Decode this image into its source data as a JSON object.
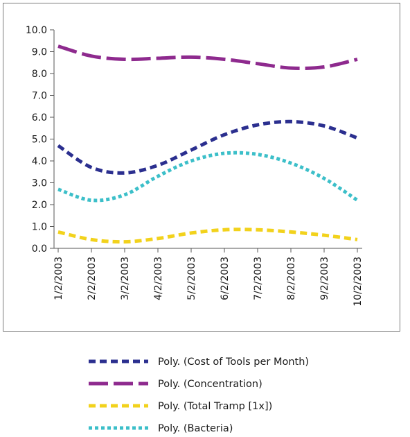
{
  "chart_data": {
    "type": "line",
    "title": "",
    "xlabel": "",
    "ylabel": "",
    "ylim": [
      0,
      10
    ],
    "y_ticks": [
      "0.0",
      "1.0",
      "2.0",
      "3.0",
      "4.0",
      "5.0",
      "6.0",
      "7.0",
      "8.0",
      "9.0",
      "10.0"
    ],
    "categories": [
      "1/2/2003",
      "2/2/2003",
      "3/2/2003",
      "4/2/2003",
      "5/2/2003",
      "6/2/2003",
      "7/2/2003",
      "8/2/2003",
      "9/2/2003",
      "10/2/2003"
    ],
    "grid": false,
    "legend_position": "bottom",
    "series": [
      {
        "name": "Poly. (Cost of Tools per Month)",
        "color": "#2b2f8f",
        "dash": "dash",
        "values": [
          4.7,
          3.7,
          3.45,
          3.8,
          4.5,
          5.2,
          5.65,
          5.8,
          5.6,
          5.05
        ]
      },
      {
        "name": "Poly. (Concentration)",
        "color": "#8e2a8e",
        "dash": "long-dash",
        "values": [
          9.25,
          8.8,
          8.65,
          8.7,
          8.75,
          8.65,
          8.45,
          8.25,
          8.3,
          8.65
        ]
      },
      {
        "name": "Poly. (Total Tramp [1x])",
        "color": "#f2d21c",
        "dash": "dash",
        "values": [
          0.75,
          0.4,
          0.3,
          0.45,
          0.7,
          0.85,
          0.85,
          0.75,
          0.6,
          0.4
        ]
      },
      {
        "name": "Poly. (Bacteria)",
        "color": "#3cbfc9",
        "dash": "dot",
        "values": [
          2.7,
          2.2,
          2.45,
          3.3,
          4.0,
          4.35,
          4.3,
          3.9,
          3.2,
          2.2
        ]
      }
    ]
  }
}
